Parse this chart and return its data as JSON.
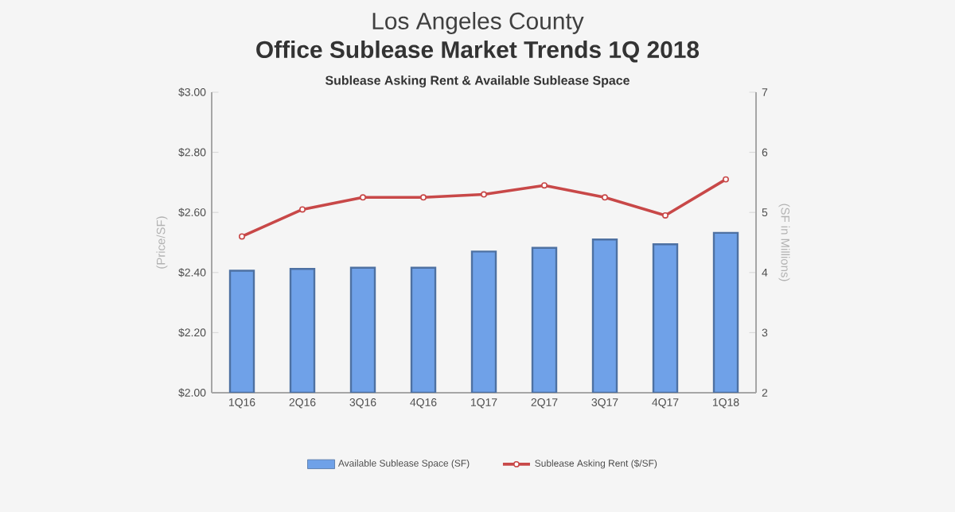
{
  "chart_data": {
    "type": "bar",
    "title": "Los Angeles County",
    "subtitle": "Office Sublease Market Trends 1Q 2018",
    "annotations": [
      "Sublease Asking Rent & Available Sublease Space"
    ],
    "categories": [
      "1Q16",
      "2Q16",
      "3Q16",
      "4Q16",
      "1Q17",
      "2Q17",
      "3Q17",
      "4Q17",
      "1Q18"
    ],
    "ylabel": "(Price/SF)",
    "y2label": "(SF in Millions)",
    "series": [
      {
        "name": "Available Sublease Space (SF)",
        "axis": "y2",
        "color": "#6fa1e8",
        "values": [
          4.03,
          4.06,
          4.08,
          4.08,
          4.35,
          4.41,
          4.55,
          4.47,
          4.66
        ]
      },
      {
        "name": "Sublease Asking Rent ($/SF)",
        "type": "line",
        "axis": "y",
        "color": "#c84848",
        "marker": "circle",
        "values": [
          2.52,
          2.61,
          2.65,
          2.65,
          2.66,
          2.69,
          2.65,
          2.59,
          2.71
        ]
      }
    ],
    "ylim": [
      2,
      3
    ],
    "yticks": [
      {
        "value": 2,
        "label": "$2.00"
      },
      {
        "value": 2.2,
        "label": "$2.20"
      },
      {
        "value": 2.4,
        "label": "$2.40"
      },
      {
        "value": 2.6,
        "label": "$2.60"
      },
      {
        "value": 2.8,
        "label": "$2.80"
      },
      {
        "value": 3,
        "label": "$3.00"
      }
    ],
    "y2lim": [
      2,
      7
    ],
    "y2ticks": [
      2,
      3,
      4,
      5,
      6,
      7
    ],
    "legend": "bottom",
    "grid": false
  }
}
